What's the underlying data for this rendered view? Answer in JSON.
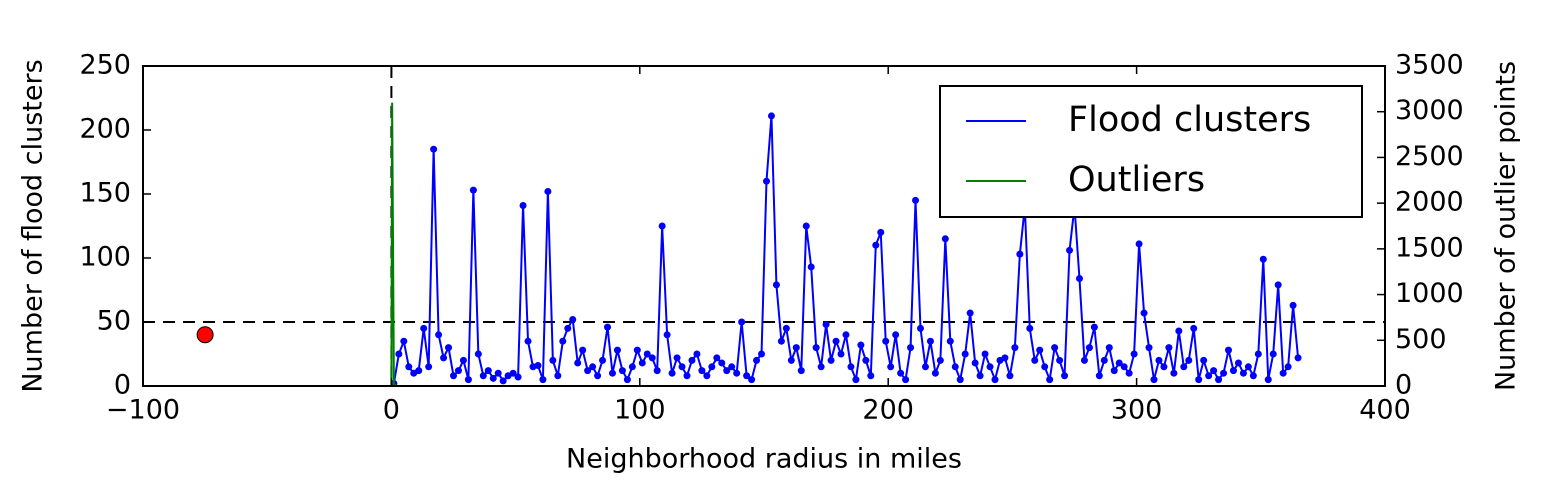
{
  "chart_data": {
    "type": "line",
    "xlabel": "Neighborhood radius in miles",
    "ylabel": "Number of flood clusters",
    "y2label": "Number of outlier points",
    "xlim": [
      -100,
      400
    ],
    "xticks": [
      {
        "value": -100,
        "label": "−100"
      },
      0,
      100,
      200,
      300,
      400
    ],
    "ylim": [
      0,
      250
    ],
    "yticks": [
      0,
      50,
      100,
      150,
      200,
      250
    ],
    "y2lim": [
      0,
      3500
    ],
    "y2ticks": [
      0,
      500,
      1000,
      1500,
      2000,
      2500,
      3000,
      3500
    ],
    "legend": "upper right",
    "hlines": [
      50
    ],
    "vlines": [
      0
    ],
    "highlight": {
      "x": -75,
      "y": 40,
      "color": "#ff0000"
    },
    "series": [
      {
        "name": "Flood clusters",
        "color": "#0000ff",
        "marker": true,
        "x": [
          1,
          3,
          5,
          7,
          9,
          11,
          13,
          15,
          17,
          19,
          21,
          23,
          25,
          27,
          29,
          31,
          33,
          35,
          37,
          39,
          41,
          43,
          45,
          47,
          49,
          51,
          53,
          55,
          57,
          59,
          61,
          63,
          65,
          67,
          69,
          71,
          73,
          75,
          77,
          79,
          81,
          83,
          85,
          87,
          89,
          91,
          93,
          95,
          97,
          99,
          101,
          103,
          105,
          107,
          109,
          111,
          113,
          115,
          117,
          119,
          121,
          123,
          125,
          127,
          129,
          131,
          133,
          135,
          137,
          139,
          141,
          143,
          145,
          147,
          149,
          151,
          153,
          155,
          157,
          159,
          161,
          163,
          165,
          167,
          169,
          171,
          173,
          175,
          177,
          179,
          181,
          183,
          185,
          187,
          189,
          191,
          193,
          195,
          197,
          199,
          201,
          203,
          205,
          207,
          209,
          211,
          213,
          215,
          217,
          219,
          221,
          223,
          225,
          227,
          229,
          231,
          233,
          235,
          237,
          239,
          241,
          243,
          245,
          247,
          249,
          251,
          253,
          255,
          257,
          259,
          261,
          263,
          265,
          267,
          269,
          271,
          273,
          275,
          277,
          279,
          281,
          283,
          285,
          287,
          289,
          291,
          293,
          295,
          297,
          299,
          301,
          303,
          305,
          307,
          309,
          311,
          313,
          315,
          317,
          319,
          321,
          323,
          325,
          327,
          329,
          331,
          333,
          335,
          337,
          339,
          341,
          343,
          345,
          347,
          349,
          351,
          353,
          355,
          357,
          359,
          361,
          363,
          365
        ],
        "values": [
          2,
          25,
          35,
          15,
          10,
          12,
          45,
          15,
          185,
          40,
          22,
          30,
          8,
          12,
          20,
          5,
          153,
          25,
          8,
          12,
          6,
          10,
          4,
          8,
          10,
          7,
          141,
          35,
          15,
          16,
          5,
          152,
          20,
          8,
          35,
          45,
          52,
          18,
          28,
          12,
          15,
          8,
          20,
          46,
          10,
          28,
          12,
          5,
          15,
          28,
          18,
          25,
          22,
          12,
          125,
          40,
          10,
          22,
          15,
          8,
          20,
          25,
          12,
          8,
          15,
          22,
          18,
          12,
          15,
          10,
          50,
          8,
          5,
          20,
          25,
          160,
          211,
          79,
          35,
          45,
          20,
          30,
          12,
          125,
          93,
          30,
          15,
          48,
          20,
          35,
          25,
          40,
          15,
          5,
          32,
          20,
          8,
          110,
          120,
          35,
          15,
          40,
          10,
          5,
          30,
          145,
          45,
          15,
          35,
          10,
          20,
          115,
          35,
          15,
          5,
          25,
          57,
          18,
          8,
          25,
          15,
          5,
          20,
          22,
          8,
          30,
          103,
          140,
          45,
          20,
          28,
          15,
          5,
          30,
          20,
          8,
          106,
          140,
          84,
          20,
          30,
          46,
          8,
          20,
          30,
          12,
          18,
          15,
          10,
          25,
          111,
          57,
          30,
          5,
          20,
          15,
          30,
          10,
          43,
          15,
          20,
          45,
          5,
          20,
          8,
          12,
          5,
          10,
          28,
          12,
          18,
          10,
          15,
          8,
          25,
          99,
          5,
          25,
          79,
          10,
          15,
          63,
          22
        ]
      },
      {
        "name": "Outliers",
        "color": "#008000",
        "axis": "y2",
        "x": [
          0,
          0.3,
          1,
          2
        ],
        "values": [
          0,
          3100,
          20,
          0
        ]
      }
    ]
  }
}
